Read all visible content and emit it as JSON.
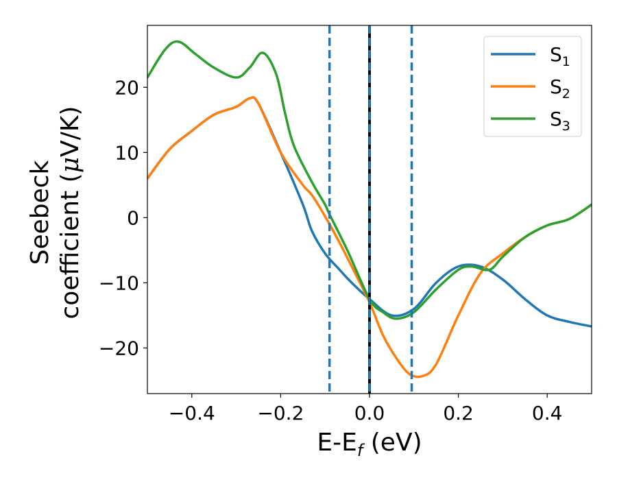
{
  "chart_data": {
    "type": "line",
    "xlabel": "E-E",
    "xlabel_sub": "f",
    "xlabel_suffix": " (eV)",
    "ylabel_line1": "Seebeck",
    "ylabel_line2": "coefficient  (",
    "ylabel_mu": "μ",
    "ylabel_unit": "V/K)",
    "xlim": [
      -0.5,
      0.5
    ],
    "ylim": [
      -27,
      29.5
    ],
    "xticks": [
      -0.4,
      -0.2,
      0.0,
      0.2,
      0.4
    ],
    "xtick_labels": [
      "−0.4",
      "−0.2",
      "0.0",
      "0.2",
      "0.4"
    ],
    "yticks": [
      -20,
      -10,
      0,
      10,
      20
    ],
    "ytick_labels": [
      "−20",
      "−10",
      "0",
      "10",
      "20"
    ],
    "grid": false,
    "legend_position": "top-right",
    "vlines": [
      {
        "x": -0.09,
        "style": "dashed",
        "color": "#1f77b4"
      },
      {
        "x": 0.0,
        "style": "solid",
        "color": "#000000"
      },
      {
        "x": 0.0,
        "style": "dashed",
        "color": "#1f77b4"
      },
      {
        "x": 0.095,
        "style": "dashed",
        "color": "#1f77b4"
      }
    ],
    "series": [
      {
        "name": "S",
        "sub": "1",
        "color": "#1f77b4",
        "x": [
          -0.5,
          -0.45,
          -0.4,
          -0.35,
          -0.3,
          -0.27,
          -0.25,
          -0.2,
          -0.15,
          -0.13,
          -0.1,
          -0.07,
          -0.04,
          0.0,
          0.05,
          0.1,
          0.15,
          0.2,
          0.25,
          0.3,
          0.35,
          0.4,
          0.45,
          0.5
        ],
        "y": [
          6,
          10.5,
          13.3,
          15.8,
          17,
          18.3,
          17.5,
          10,
          2,
          -2,
          -5.5,
          -7.8,
          -10,
          -12.5,
          -15,
          -14,
          -10,
          -7.5,
          -7.5,
          -9.5,
          -12.5,
          -15,
          -16,
          -16.7
        ]
      },
      {
        "name": "S",
        "sub": "2",
        "color": "#ff7f0e",
        "x": [
          -0.5,
          -0.45,
          -0.4,
          -0.35,
          -0.3,
          -0.27,
          -0.25,
          -0.2,
          -0.15,
          -0.13,
          -0.1,
          -0.07,
          -0.04,
          0.0,
          0.03,
          0.06,
          0.09,
          0.12,
          0.15,
          0.2,
          0.25,
          0.3,
          0.35,
          0.4,
          0.45,
          0.5
        ],
        "y": [
          6,
          10.5,
          13.3,
          15.8,
          17,
          18.3,
          17.5,
          10,
          5,
          3.5,
          0.2,
          -3.5,
          -7.5,
          -13,
          -18,
          -21.5,
          -24,
          -24.3,
          -22.5,
          -15,
          -8.5,
          -5.5,
          -3,
          -1.2,
          -0.2,
          2
        ]
      },
      {
        "name": "S",
        "sub": "3",
        "color": "#2ca02c",
        "x": [
          -0.5,
          -0.46,
          -0.43,
          -0.39,
          -0.35,
          -0.3,
          -0.27,
          -0.24,
          -0.21,
          -0.19,
          -0.17,
          -0.13,
          -0.1,
          -0.09,
          -0.05,
          0.0,
          0.03,
          0.06,
          0.1,
          0.15,
          0.2,
          0.23,
          0.27,
          0.3,
          0.35,
          0.4,
          0.45,
          0.5
        ],
        "y": [
          21.5,
          25.8,
          27,
          25,
          23,
          21.5,
          23,
          25.3,
          22,
          16,
          11,
          5.5,
          2,
          0.5,
          -5,
          -12.5,
          -14.5,
          -15.5,
          -14.5,
          -11,
          -8,
          -7.5,
          -8,
          -6,
          -3,
          -1.2,
          -0.2,
          2
        ]
      }
    ]
  }
}
